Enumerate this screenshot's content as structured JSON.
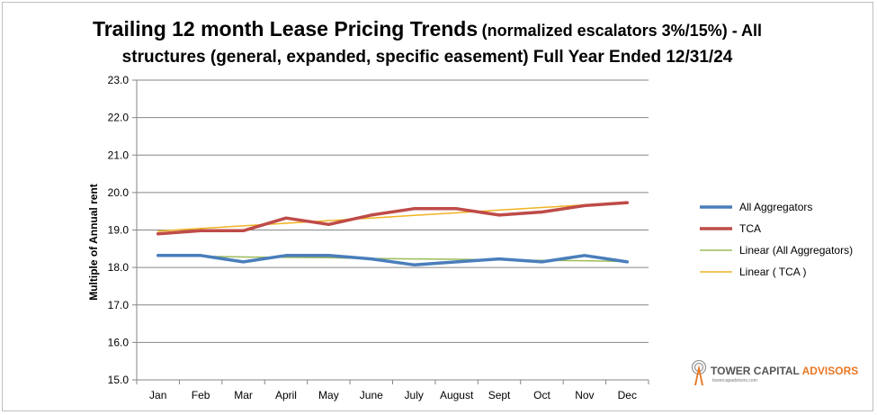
{
  "chart_data": {
    "type": "line",
    "title_main": "Trailing 12 month Lease Pricing Trends",
    "title_sub": "(normalized escalators 3%/15%) - All",
    "title_line2": "structures (general, expanded, specific easement) Full Year Ended 12/31/24",
    "ylabel": "Multiple of Annual  rent",
    "categories": [
      "Jan",
      "Feb",
      "Mar",
      "April",
      "May",
      "June",
      "July",
      "August",
      "Sept",
      "Oct",
      "Nov",
      "Dec"
    ],
    "ylim": [
      15.0,
      23.0
    ],
    "yticks": [
      "15.0",
      "16.0",
      "17.0",
      "18.0",
      "19.0",
      "20.0",
      "21.0",
      "22.0",
      "23.0"
    ],
    "grid": true,
    "legend_position": "right",
    "series": [
      {
        "name": "All Aggregators",
        "color": "#4a7ebb",
        "width": 3.5,
        "values": [
          18.32,
          18.32,
          18.15,
          18.32,
          18.32,
          18.23,
          18.07,
          18.15,
          18.23,
          18.15,
          18.32,
          18.15
        ]
      },
      {
        "name": "TCA",
        "color": "#be4b48",
        "width": 3.5,
        "values": [
          18.9,
          18.98,
          18.98,
          19.32,
          19.15,
          19.4,
          19.57,
          19.57,
          19.4,
          19.48,
          19.65,
          19.73
        ]
      },
      {
        "name": "Linear (All Aggregators)",
        "color": "#9bbb59",
        "width": 1.5,
        "values": [
          18.31,
          18.3,
          18.28,
          18.27,
          18.26,
          18.24,
          18.23,
          18.22,
          18.2,
          18.19,
          18.18,
          18.16
        ]
      },
      {
        "name": "Linear ( TCA )",
        "color": "#f0b323",
        "width": 1.5,
        "values": [
          18.97,
          19.04,
          19.11,
          19.18,
          19.25,
          19.32,
          19.39,
          19.46,
          19.53,
          19.6,
          19.67,
          19.74
        ]
      }
    ]
  },
  "logo": {
    "name_part1": "TOWER CAPITAL ",
    "name_part2": "ADVISORS",
    "url": "towercapadvisors.com"
  }
}
